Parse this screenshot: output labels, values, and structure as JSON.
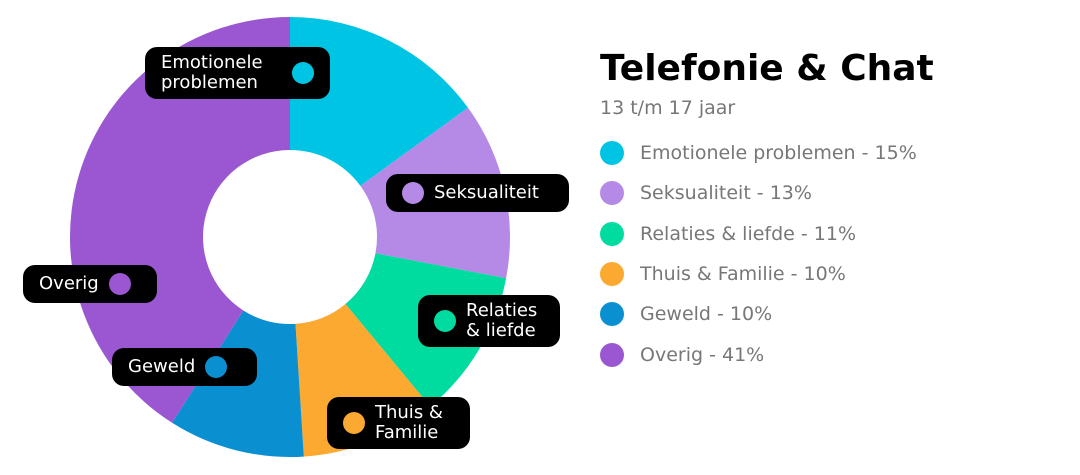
{
  "chart_data": {
    "type": "donut",
    "title": "Telefonie & Chat",
    "subtitle": "13 t/m 17 jaar",
    "categories": [
      "Emotionele problemen",
      "Seksualiteit",
      "Relaties & liefde",
      "Thuis & Familie",
      "Geweld",
      "Overig"
    ],
    "values": [
      15,
      13,
      11,
      10,
      10,
      41
    ],
    "value_labels": [
      "Emotionele problemen - 15%",
      "Seksualiteit - 13%",
      "Relaties & liefde - 11%",
      "Thuis & Familie - 10%",
      "Geweld - 10%",
      "Overig - 41%"
    ],
    "colors": [
      "#00c4e3",
      "#b48ae6",
      "#00dba0",
      "#fba930",
      "#0a8fd1",
      "#9a57d1"
    ]
  }
}
